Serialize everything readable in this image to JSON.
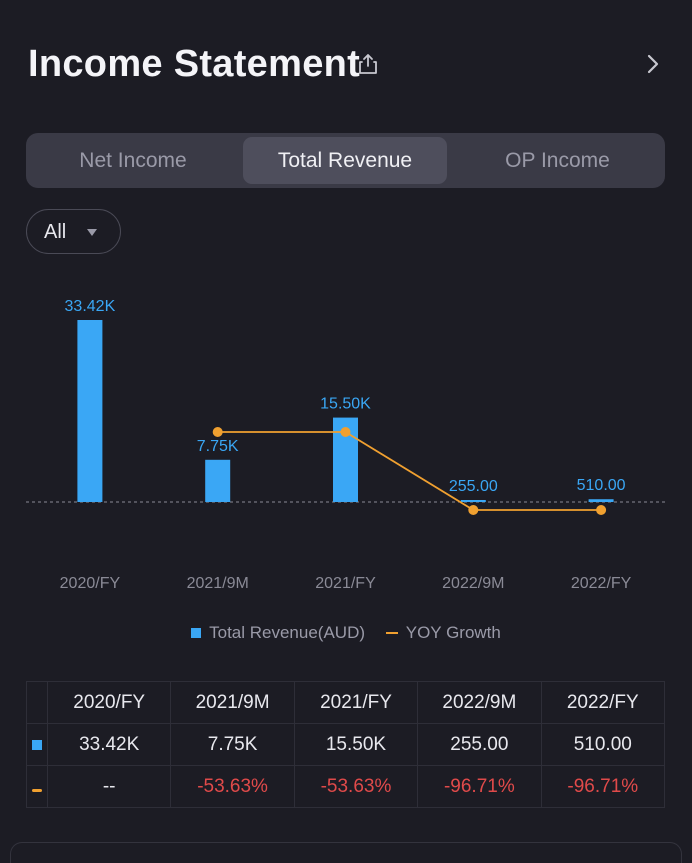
{
  "header": {
    "title": "Income Statement",
    "share_icon": "share-icon",
    "chevron_icon": "chevron-right-icon"
  },
  "tabs": [
    {
      "label": "Net Income",
      "active": false
    },
    {
      "label": "Total Revenue",
      "active": true
    },
    {
      "label": "OP Income",
      "active": false
    }
  ],
  "filter": {
    "selected": "All"
  },
  "colors": {
    "bar": "#3aa7f5",
    "line": "#f0a030",
    "label": "#3aa7f5",
    "negative": "#e04a4a"
  },
  "chart_data": {
    "type": "bar",
    "categories": [
      "2020/FY",
      "2021/9M",
      "2021/FY",
      "2022/9M",
      "2022/FY"
    ],
    "series": [
      {
        "name": "Total Revenue(AUD)",
        "type": "bar",
        "values": [
          33420,
          7750,
          15500,
          255,
          510
        ],
        "labels": [
          "33.42K",
          "7.75K",
          "15.50K",
          "255.00",
          "510.00"
        ]
      },
      {
        "name": "YOY Growth",
        "type": "line",
        "values": [
          null,
          -53.63,
          -53.63,
          -96.71,
          -96.71
        ]
      }
    ],
    "legend_position": "bottom",
    "baseline": "dashed"
  },
  "legend": {
    "revenue": "Total Revenue(AUD)",
    "growth": "YOY Growth"
  },
  "table": {
    "headers": [
      "2020/FY",
      "2021/9M",
      "2021/FY",
      "2022/9M",
      "2022/FY"
    ],
    "revenue": [
      "33.42K",
      "7.75K",
      "15.50K",
      "255.00",
      "510.00"
    ],
    "growth": [
      "--",
      "-53.63%",
      "-53.63%",
      "-96.71%",
      "-96.71%"
    ]
  }
}
